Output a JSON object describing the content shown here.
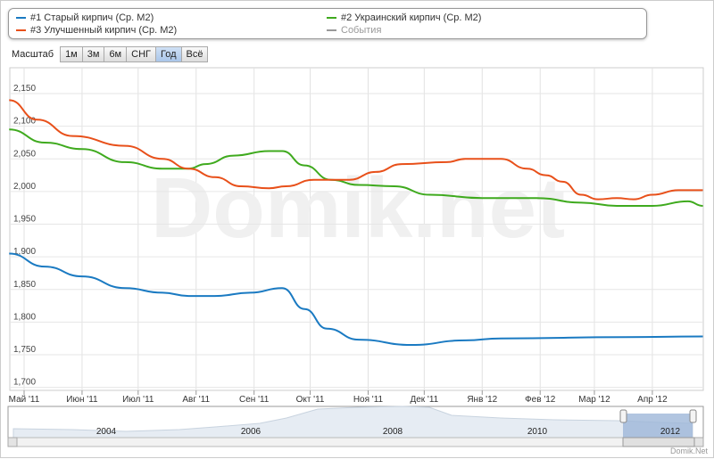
{
  "legend": [
    {
      "label": "#1 Старый кирпич (Ср. М2)",
      "color": "#1a7ac2"
    },
    {
      "label": "#2 Украинский кирпич (Ср. М2)",
      "color": "#3faa1e"
    },
    {
      "label": "#3 Улучшенный кирпич (Ср. М2)",
      "color": "#e8501a"
    },
    {
      "label": "События",
      "color": "#999999"
    }
  ],
  "range_selector": {
    "label": "Масштаб",
    "buttons": [
      "1м",
      "3м",
      "6м",
      "СНГ",
      "Год",
      "Всё"
    ],
    "selected": "Год"
  },
  "watermark": "Domik.net",
  "navigator": {
    "years": [
      "2004",
      "2006",
      "2008",
      "2010",
      "2012"
    ]
  },
  "footer": "Domik.Net",
  "chart_data": {
    "type": "line",
    "ylim": [
      1700,
      2175
    ],
    "yticks": [
      "1,700",
      "1,750",
      "1,800",
      "1,850",
      "1,900",
      "1,950",
      "2,000",
      "2,050",
      "2,100",
      "2,150"
    ],
    "ytick_values": [
      1700,
      1750,
      1800,
      1850,
      1900,
      1950,
      2000,
      2050,
      2100,
      2150
    ],
    "xticks": [
      "Май '11",
      "Июн '11",
      "Июл '11",
      "Авг '11",
      "Сен '11",
      "Окт '11",
      "Ноя '11",
      "Дек '11",
      "Янв '12",
      "Фев '12",
      "Мар '12",
      "Апр '12"
    ],
    "xtick_dates": [
      "2011-05-01",
      "2011-06-01",
      "2011-07-01",
      "2011-08-01",
      "2011-09-01",
      "2011-10-01",
      "2011-11-01",
      "2011-12-01",
      "2012-01-01",
      "2012-02-01",
      "2012-03-01",
      "2012-04-01"
    ],
    "grid": true,
    "series": [
      {
        "name": "#1 Старый кирпич (Ср. М2)",
        "color": "#1a7ac2",
        "points": [
          [
            "2011-04-23",
            1905
          ],
          [
            "2011-05-12",
            1885
          ],
          [
            "2011-06-01",
            1870
          ],
          [
            "2011-06-24",
            1852
          ],
          [
            "2011-07-14",
            1845
          ],
          [
            "2011-07-28",
            1840
          ],
          [
            "2011-08-11",
            1840
          ],
          [
            "2011-08-30",
            1845
          ],
          [
            "2011-09-16",
            1852
          ],
          [
            "2011-09-28",
            1820
          ],
          [
            "2011-10-10",
            1790
          ],
          [
            "2011-10-27",
            1773
          ],
          [
            "2011-11-24",
            1765
          ],
          [
            "2011-12-23",
            1772
          ],
          [
            "2012-01-11",
            1775
          ],
          [
            "2012-03-18",
            1777
          ],
          [
            "2012-04-28",
            1778
          ]
        ]
      },
      {
        "name": "#2 Украинский кирпич (Ср. М2)",
        "color": "#3faa1e",
        "points": [
          [
            "2011-04-23",
            2095
          ],
          [
            "2011-05-12",
            2075
          ],
          [
            "2011-06-01",
            2065
          ],
          [
            "2011-06-24",
            2045
          ],
          [
            "2011-07-14",
            2035
          ],
          [
            "2011-07-28",
            2035
          ],
          [
            "2011-08-06",
            2042
          ],
          [
            "2011-08-21",
            2055
          ],
          [
            "2011-09-09",
            2062
          ],
          [
            "2011-09-16",
            2062
          ],
          [
            "2011-09-28",
            2040
          ],
          [
            "2011-10-12",
            2018
          ],
          [
            "2011-10-27",
            2010
          ],
          [
            "2011-11-15",
            2008
          ],
          [
            "2011-12-04",
            1995
          ],
          [
            "2012-01-01",
            1990
          ],
          [
            "2012-01-30",
            1990
          ],
          [
            "2012-02-23",
            1983
          ],
          [
            "2012-03-13",
            1978
          ],
          [
            "2012-04-01",
            1978
          ],
          [
            "2012-04-20",
            1985
          ],
          [
            "2012-04-28",
            1978
          ]
        ]
      },
      {
        "name": "#3 Улучшенный кирпич (Ср. М2)",
        "color": "#e8501a",
        "points": [
          [
            "2011-04-23",
            2140
          ],
          [
            "2011-05-08",
            2110
          ],
          [
            "2011-05-27",
            2085
          ],
          [
            "2011-06-24",
            2070
          ],
          [
            "2011-07-14",
            2050
          ],
          [
            "2011-07-28",
            2035
          ],
          [
            "2011-08-11",
            2022
          ],
          [
            "2011-08-25",
            2008
          ],
          [
            "2011-09-09",
            2005
          ],
          [
            "2011-09-18",
            2008
          ],
          [
            "2011-10-03",
            2018
          ],
          [
            "2011-10-22",
            2018
          ],
          [
            "2011-11-05",
            2030
          ],
          [
            "2011-11-19",
            2042
          ],
          [
            "2011-12-13",
            2045
          ],
          [
            "2011-12-23",
            2050
          ],
          [
            "2012-01-11",
            2050
          ],
          [
            "2012-01-25",
            2035
          ],
          [
            "2012-02-04",
            2025
          ],
          [
            "2012-02-13",
            2015
          ],
          [
            "2012-02-23",
            1995
          ],
          [
            "2012-03-03",
            1988
          ],
          [
            "2012-03-13",
            1990
          ],
          [
            "2012-03-22",
            1988
          ],
          [
            "2012-04-01",
            1995
          ],
          [
            "2012-04-15",
            2002
          ],
          [
            "2012-04-28",
            2002
          ]
        ]
      }
    ]
  }
}
